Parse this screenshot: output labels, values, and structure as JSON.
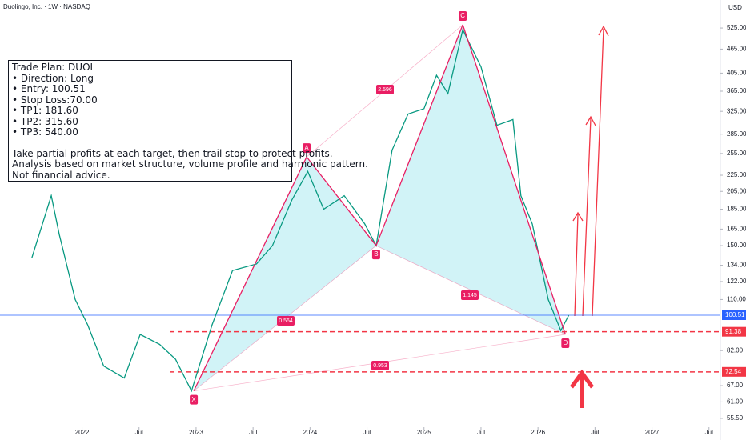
{
  "header": {
    "title": "Duolingo, Inc. · 1W · NASDAQ",
    "currency": "USD"
  },
  "trade_plan": {
    "lines": [
      "Trade Plan: DUOL",
      "• Direction: Long",
      "• Entry: 100.51",
      "• Stop Loss:70.00",
      "• TP1: 181.60",
      "• TP2: 315.60",
      "• TP3: 540.00"
    ],
    "notes": [
      "Take partial profits at each target, then trail stop to protect profits.",
      "Analysis based on market structure, volume profile and harmonic pattern.",
      "Not financial advice."
    ]
  },
  "chart_data": {
    "type": "line",
    "log_scale": true,
    "color": "#089981",
    "x": [
      2021.56,
      2021.73,
      2021.8,
      2021.94,
      2022.05,
      2022.19,
      2022.37,
      2022.51,
      2022.68,
      2022.82,
      2022.96,
      2023.14,
      2023.32,
      2023.53,
      2023.67,
      2023.84,
      2023.98,
      2024.12,
      2024.3,
      2024.48,
      2024.58,
      2024.72,
      2024.86,
      2025.0,
      2025.11,
      2025.21,
      2025.34,
      2025.5,
      2025.64,
      2025.78,
      2025.85,
      2025.95,
      2026.09,
      2026.2,
      2026.27
    ],
    "values": [
      140,
      200,
      160,
      110,
      95,
      75,
      70,
      90,
      85,
      78,
      65,
      95,
      130,
      135,
      150,
      195,
      230,
      185,
      200,
      170,
      150,
      260,
      320,
      330,
      400,
      360,
      520,
      420,
      300,
      310,
      200,
      170,
      110,
      92,
      100.51
    ],
    "xlim": [
      2021.28,
      2027.6
    ],
    "xticks": [
      {
        "value": 2022,
        "label": "2022"
      },
      {
        "value": 2022.5,
        "label": "Jul"
      },
      {
        "value": 2023,
        "label": "2023"
      },
      {
        "value": 2023.5,
        "label": "Jul"
      },
      {
        "value": 2024,
        "label": "2024"
      },
      {
        "value": 2024.5,
        "label": "Jul"
      },
      {
        "value": 2025,
        "label": "2025"
      },
      {
        "value": 2025.5,
        "label": "Jul"
      },
      {
        "value": 2026,
        "label": "2026"
      },
      {
        "value": 2026.5,
        "label": "Jul"
      },
      {
        "value": 2027,
        "label": "2027"
      },
      {
        "value": 2027.5,
        "label": "Jul"
      }
    ],
    "ylim": [
      49,
      617
    ],
    "yticks": [
      {
        "value": 525,
        "label": "525.00"
      },
      {
        "value": 465,
        "label": "465.00"
      },
      {
        "value": 405,
        "label": "405.00"
      },
      {
        "value": 365,
        "label": "365.00"
      },
      {
        "value": 325,
        "label": "325.00"
      },
      {
        "value": 285,
        "label": "285.00"
      },
      {
        "value": 255,
        "label": "255.00"
      },
      {
        "value": 225,
        "label": "225.00"
      },
      {
        "value": 205,
        "label": "205.00"
      },
      {
        "value": 185,
        "label": "185.00"
      },
      {
        "value": 165,
        "label": "165.00"
      },
      {
        "value": 150,
        "label": "150.00"
      },
      {
        "value": 134,
        "label": "134.00"
      },
      {
        "value": 122,
        "label": "122.00"
      },
      {
        "value": 110,
        "label": "110.00"
      },
      {
        "value": 82,
        "label": "82.00"
      },
      {
        "value": 67,
        "label": "67.00"
      },
      {
        "value": 61,
        "label": "61.00"
      },
      {
        "value": 55.5,
        "label": "55.50"
      }
    ],
    "levels": [
      {
        "value": 100.51,
        "label": "100.51",
        "color": "#2962ff"
      },
      {
        "value": 91.38,
        "label": "91.38",
        "color": "#f23645"
      },
      {
        "value": 72.54,
        "label": "72.54",
        "color": "#f23645"
      }
    ],
    "pattern": {
      "labels": [
        "X",
        "A",
        "B",
        "C",
        "D"
      ],
      "x": [
        2022.98,
        2023.97,
        2024.58,
        2025.34,
        2026.24
      ],
      "values": [
        65,
        250,
        150,
        535,
        90
      ],
      "color": "#e91e63"
    },
    "ratios": [
      "0.564",
      "2.596",
      "1.145",
      "0.953"
    ]
  }
}
